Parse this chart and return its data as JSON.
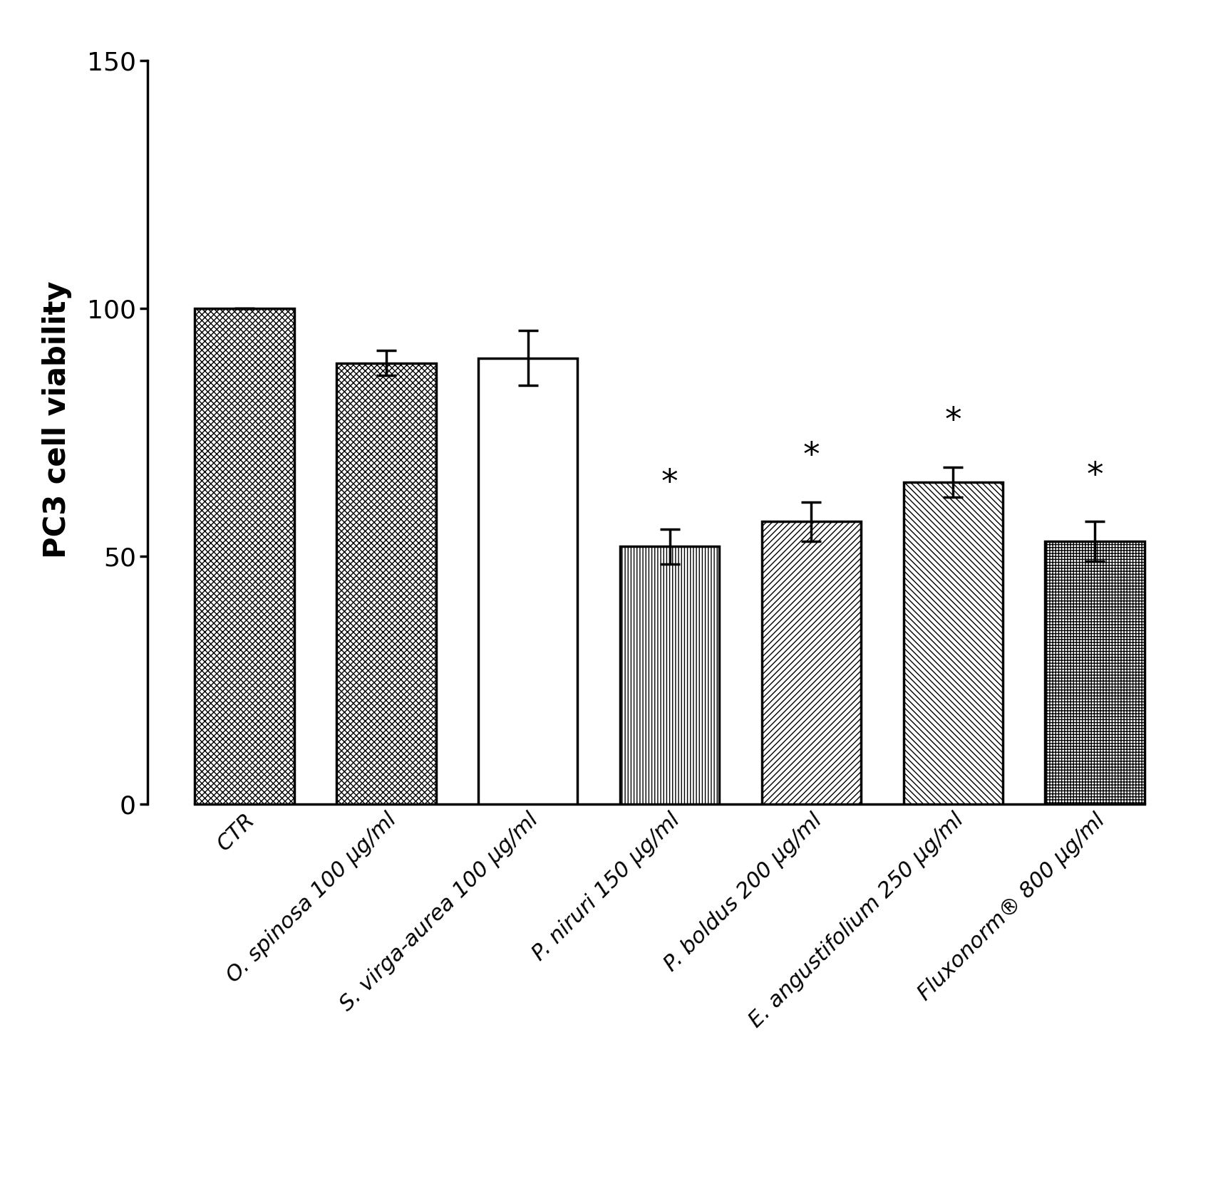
{
  "categories": [
    "CTR",
    "O. spinosa 100 μg/ml",
    "S. virga-aurea 100 μg/ml",
    "P. niruri 150 μg/ml",
    "P. boldus 200 μg/ml",
    "E. angustifolium 250 μg/ml",
    "Fluxonorm® 800 μg/ml"
  ],
  "values": [
    100,
    89,
    90,
    52,
    57,
    65,
    53
  ],
  "errors": [
    0,
    2.5,
    5.5,
    3.5,
    4.0,
    3.0,
    4.0
  ],
  "significant": [
    false,
    false,
    false,
    true,
    true,
    true,
    true
  ],
  "ylabel": "PC3 cell viability",
  "ylim": [
    0,
    155
  ],
  "yticks": [
    0,
    50,
    100,
    150
  ],
  "bar_color": "#ffffff",
  "bar_edgecolor": "#000000",
  "bar_linewidth": 2.5,
  "tick_fontsize": 26,
  "ylabel_fontsize": 30,
  "xlabel_fontsize": 22,
  "star_fontsize": 34,
  "background_color": "#ffffff"
}
